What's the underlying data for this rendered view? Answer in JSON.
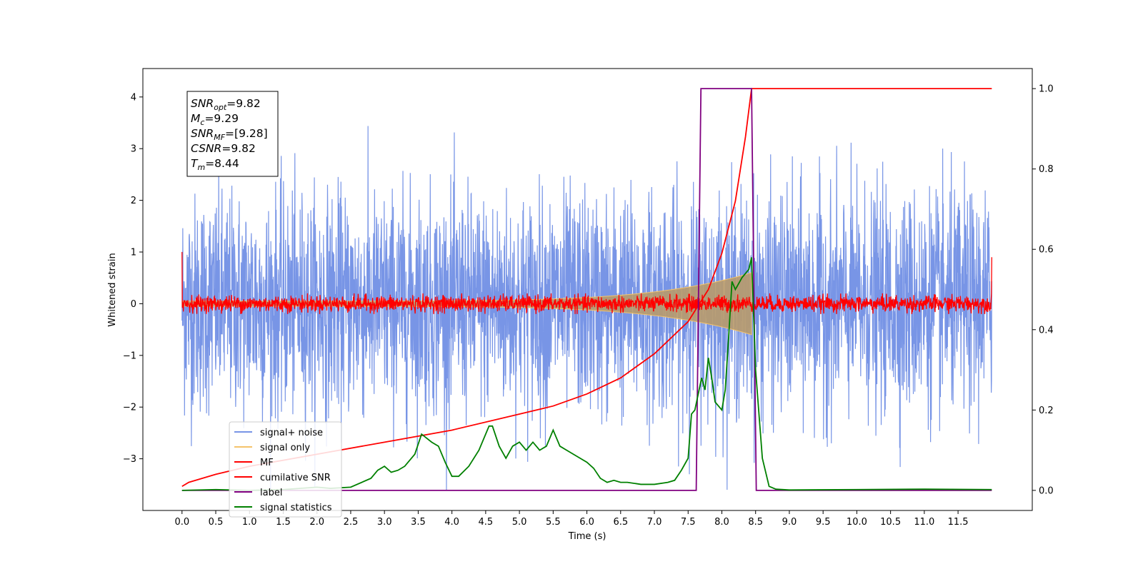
{
  "chart_data": {
    "type": "line",
    "xlabel": "Time (s)",
    "ylabel": "Whitened strain",
    "xlim": [
      -0.58,
      12.6
    ],
    "ylim_left": [
      -4.0,
      4.55
    ],
    "ylim_right": [
      -0.05,
      1.05
    ],
    "x_ticks": [
      "0.0",
      "0.5",
      "1.0",
      "1.5",
      "2.0",
      "2.5",
      "3.0",
      "3.5",
      "4.0",
      "4.5",
      "5.0",
      "5.5",
      "6.0",
      "6.5",
      "7.0",
      "7.5",
      "8.0",
      "8.5",
      "9.0",
      "9.5",
      "10.0",
      "10.5",
      "11.0",
      "11.5"
    ],
    "y_ticks_left": [
      "−3",
      "−2",
      "−1",
      "0",
      "1",
      "2",
      "3",
      "4"
    ],
    "y_ticks_right": [
      "0.0",
      "0.2",
      "0.4",
      "0.6",
      "0.8",
      "1.0"
    ],
    "legend_position": "lower-left",
    "annotation": {
      "lines": [
        {
          "name": "SNR",
          "sub": "opt",
          "value": "=9.82"
        },
        {
          "name": "M",
          "sub": "c",
          "value": "=9.29"
        },
        {
          "name": "SNR",
          "sub": "MF",
          "value": "=[9.28]"
        },
        {
          "name": "CSNR",
          "sub": "",
          "value": "=9.82"
        },
        {
          "name": "T",
          "sub": "m",
          "value": "=8.44"
        }
      ]
    },
    "series": [
      {
        "name": "signal+ noise",
        "color": "#7895e6",
        "axis": "left",
        "x_range": [
          0.0,
          12.0
        ],
        "noise_sigma": 1.0,
        "amp_clip": [
          -3.6,
          4.2
        ]
      },
      {
        "name": "signal only",
        "color": "#f4c36b",
        "axis": "left",
        "chirp": {
          "x_start": 0.0,
          "x_end": 8.44,
          "amp_start": 0.05,
          "amp_end": 0.6
        }
      },
      {
        "name": "MF",
        "color": "#ff0000",
        "axis": "left",
        "x_range": [
          0.0,
          12.0
        ],
        "noise_sigma": 0.08,
        "edge_values": [
          1.0,
          0.9
        ]
      },
      {
        "name": "cumilative SNR",
        "color": "#ff0000",
        "axis": "right",
        "x": [
          0.0,
          0.1,
          0.5,
          1.0,
          2.0,
          3.0,
          4.0,
          5.0,
          5.5,
          6.0,
          6.5,
          7.0,
          7.5,
          7.8,
          8.0,
          8.2,
          8.35,
          8.44,
          9.0,
          10.0,
          11.0,
          12.0
        ],
        "y": [
          0.01,
          0.02,
          0.04,
          0.06,
          0.09,
          0.12,
          0.15,
          0.19,
          0.21,
          0.24,
          0.28,
          0.34,
          0.42,
          0.5,
          0.59,
          0.72,
          0.88,
          1.0,
          1.0,
          1.0,
          1.0,
          1.0
        ]
      },
      {
        "name": "label",
        "color": "#800080",
        "axis": "right",
        "x": [
          0.0,
          7.62,
          7.69,
          8.44,
          8.51,
          12.0
        ],
        "y": [
          0.0,
          0.0,
          1.0,
          1.0,
          0.0,
          0.0
        ]
      },
      {
        "name": "signal statistics",
        "color": "#008000",
        "axis": "right",
        "x": [
          0.0,
          0.5,
          1.0,
          1.5,
          2.0,
          2.2,
          2.5,
          2.8,
          2.9,
          3.0,
          3.1,
          3.2,
          3.3,
          3.45,
          3.55,
          3.7,
          3.8,
          3.9,
          4.0,
          4.1,
          4.25,
          4.4,
          4.55,
          4.6,
          4.7,
          4.8,
          4.9,
          5.0,
          5.1,
          5.2,
          5.3,
          5.4,
          5.5,
          5.6,
          5.7,
          5.8,
          5.9,
          6.0,
          6.1,
          6.2,
          6.3,
          6.4,
          6.5,
          6.6,
          6.8,
          7.0,
          7.2,
          7.3,
          7.4,
          7.5,
          7.55,
          7.6,
          7.7,
          7.75,
          7.8,
          7.85,
          7.9,
          8.0,
          8.05,
          8.1,
          8.15,
          8.2,
          8.3,
          8.4,
          8.44,
          8.5,
          8.6,
          8.7,
          8.8,
          9.0,
          10.0,
          11.0,
          12.0
        ],
        "y": [
          0.0,
          0.002,
          0.0,
          0.002,
          0.008,
          0.005,
          0.008,
          0.03,
          0.05,
          0.06,
          0.045,
          0.05,
          0.06,
          0.09,
          0.14,
          0.12,
          0.11,
          0.07,
          0.035,
          0.035,
          0.06,
          0.1,
          0.16,
          0.16,
          0.11,
          0.08,
          0.11,
          0.12,
          0.1,
          0.12,
          0.1,
          0.11,
          0.15,
          0.11,
          0.1,
          0.09,
          0.08,
          0.07,
          0.055,
          0.03,
          0.02,
          0.025,
          0.02,
          0.02,
          0.015,
          0.015,
          0.02,
          0.025,
          0.05,
          0.08,
          0.19,
          0.2,
          0.28,
          0.25,
          0.33,
          0.28,
          0.22,
          0.2,
          0.25,
          0.38,
          0.52,
          0.5,
          0.53,
          0.55,
          0.58,
          0.3,
          0.08,
          0.01,
          0.003,
          0.001,
          0.002,
          0.003,
          0.002
        ]
      }
    ]
  }
}
